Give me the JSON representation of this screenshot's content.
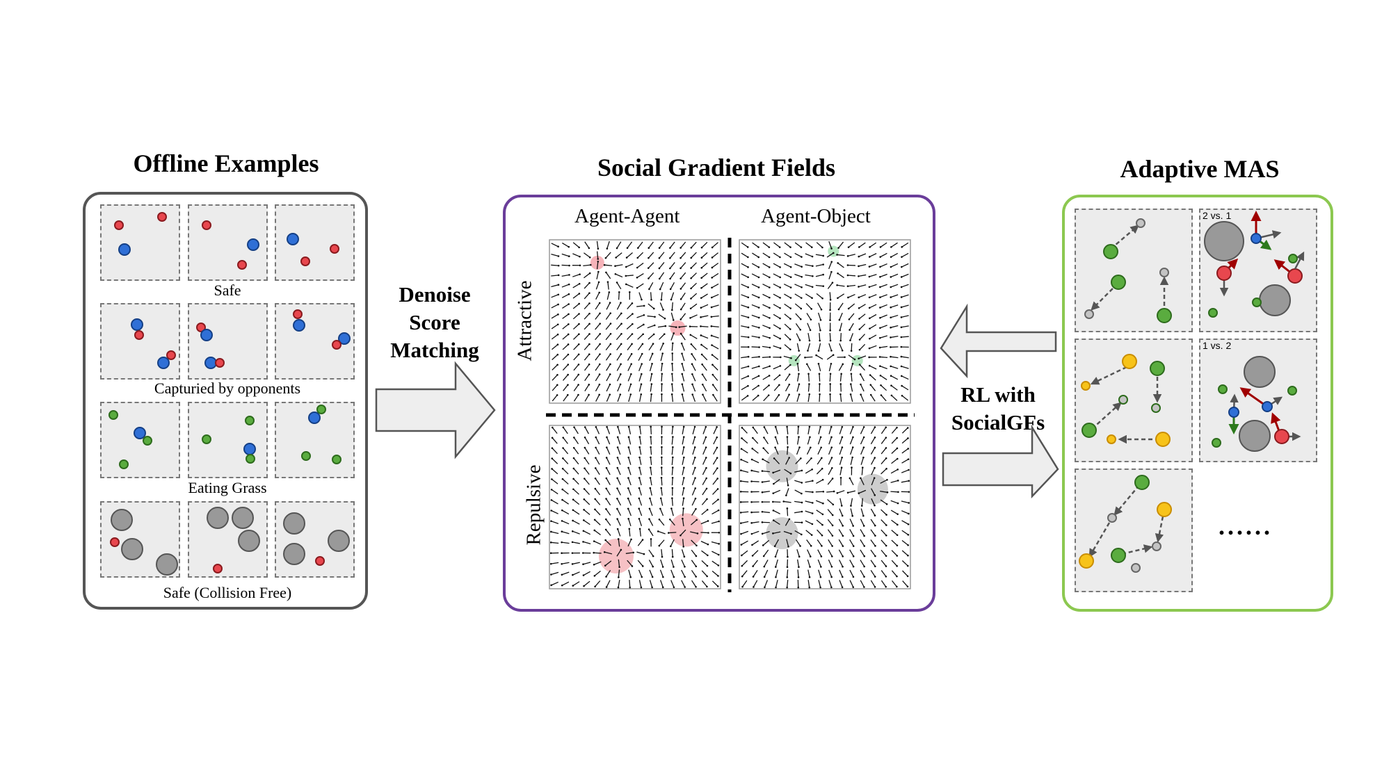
{
  "offline": {
    "title": "Offline Examples",
    "captions": [
      "Safe",
      "Capturied by opponents",
      "Eating Grass",
      "Safe (Collision Free)"
    ]
  },
  "gradient": {
    "title": "Social Gradient Fields",
    "col_labels": [
      "Agent-Agent",
      "Agent-Object"
    ],
    "row_labels": [
      "Attractive",
      "Repulsive"
    ]
  },
  "adaptive": {
    "title": "Adaptive MAS",
    "tags": [
      "2 vs. 1",
      "1 vs. 2"
    ],
    "ellipsis": "......"
  },
  "arrows": {
    "denoise": [
      "Denoise",
      "Score",
      "Matching"
    ],
    "rl": [
      "RL with",
      "SocialGFs"
    ]
  },
  "colors": {
    "offline_border": "#555555",
    "gradient_border": "#6a3d9a",
    "adaptive_border": "#8cc850"
  }
}
